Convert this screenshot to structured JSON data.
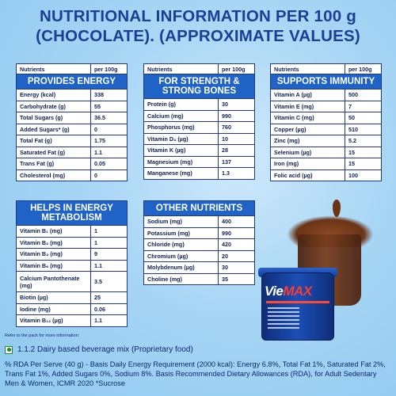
{
  "title": {
    "line1": "NUTRITIONAL INFORMATION PER 100 g",
    "line2": "(CHOCOLATE). (APPROXIMATE VALUES)"
  },
  "col_head": {
    "nutrients": "Nutrients",
    "per": "per 100g"
  },
  "tables": {
    "energy": {
      "header": "PROVIDES ENERGY",
      "rows": [
        {
          "n": "Energy (kcal)",
          "v": "338"
        },
        {
          "n": "Carbohydrate (g)",
          "v": "55"
        },
        {
          "n": "Total Sugars (g)",
          "v": "36.5"
        },
        {
          "n": "Added Sugars* (g)",
          "v": "0"
        },
        {
          "n": "Total Fat (g)",
          "v": "1.75"
        },
        {
          "n": "Saturated Fat (g)",
          "v": "1.1"
        },
        {
          "n": "Trans Fat (g)",
          "v": "0.05"
        },
        {
          "n": "Cholesterol (mg)",
          "v": "0"
        }
      ]
    },
    "bones": {
      "header": "FOR STRENGTH & STRONG BONES",
      "rows": [
        {
          "n": "Protein (g)",
          "v": "30"
        },
        {
          "n": "Calcium (mg)",
          "v": "990"
        },
        {
          "n": "Phosphorus (mg)",
          "v": "760"
        },
        {
          "n": "Vitamin D₃ (µg)",
          "v": "10"
        },
        {
          "n": "Vitamin K (µg)",
          "v": "28"
        },
        {
          "n": "Magnesium (mg)",
          "v": "137"
        },
        {
          "n": "Manganese (mg)",
          "v": "1.3"
        }
      ]
    },
    "immunity": {
      "header": "SUPPORTS IMMUNITY",
      "rows": [
        {
          "n": "Vitamin A (µg)",
          "v": "500"
        },
        {
          "n": "Vitamin E (mg)",
          "v": "7"
        },
        {
          "n": "Vitamin C (mg)",
          "v": "50"
        },
        {
          "n": "Copper (µg)",
          "v": "510"
        },
        {
          "n": "Zinc (mg)",
          "v": "5.2"
        },
        {
          "n": "Selenium (µg)",
          "v": "15"
        },
        {
          "n": "Iron (mg)",
          "v": "15"
        },
        {
          "n": "Folic acid (µg)",
          "v": "100"
        }
      ]
    },
    "metabolism": {
      "header": "HELPS IN ENERGY METABOLISM",
      "rows": [
        {
          "n": "Vitamin B₁ (mg)",
          "v": "1"
        },
        {
          "n": "Vitamin B₂ (mg)",
          "v": "1"
        },
        {
          "n": "Vitamin B₃ (mg)",
          "v": "9"
        },
        {
          "n": "Vitamin B₆ (mg)",
          "v": "1.1"
        },
        {
          "n": "Calcium Pantothenate (mg)",
          "v": "3.5"
        },
        {
          "n": "Biotin (µg)",
          "v": "25"
        },
        {
          "n": "Iodine (mg)",
          "v": "0.06"
        },
        {
          "n": "Vitamin B₁₂ (µg)",
          "v": "1.1"
        }
      ]
    },
    "other": {
      "header": "OTHER NUTRIENTS",
      "rows": [
        {
          "n": "Sodium (mg)",
          "v": "400"
        },
        {
          "n": "Potassium (mg)",
          "v": "990"
        },
        {
          "n": "Chloride (mg)",
          "v": "420"
        },
        {
          "n": "Chromium (µg)",
          "v": "20"
        },
        {
          "n": "Molybdenum (µg)",
          "v": "30"
        },
        {
          "n": "Choline (mg)",
          "v": "35"
        }
      ]
    }
  },
  "refer_text": "Refer to the pack for more information:",
  "fssai_text": "1.1.2 Dairy based beverage mix (Proprietary food)",
  "rda_text": "% RDA Per Serve (40 g) - Basis Daily Energy Requirement (2000 kcal): Energy 6.8%, Total Fat 1%, Saturated Fat 2%, Trans Fat 1%, Added Sugars 0%, Sodium 8%. Basis Recommended Dietary Allowances (RDA), for Adult Sedentary Men & Women, ICMR 2020 *Sucrose",
  "product": {
    "brand_a": "Vie",
    "brand_b": "MAX"
  },
  "colors": {
    "header_blue": "#1f63c6",
    "title_blue": "#1a3f95",
    "border": "#1f3a8a"
  }
}
